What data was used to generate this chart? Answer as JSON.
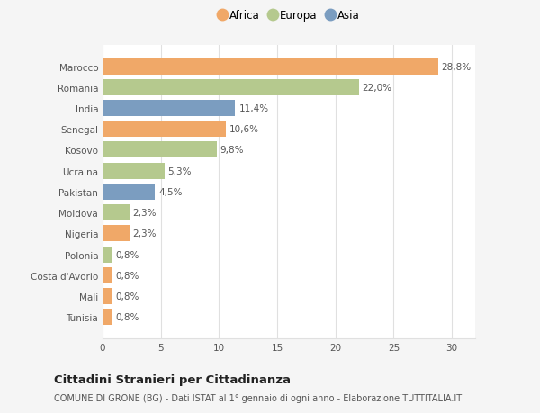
{
  "countries": [
    "Marocco",
    "Romania",
    "India",
    "Senegal",
    "Kosovo",
    "Ucraina",
    "Pakistan",
    "Moldova",
    "Nigeria",
    "Polonia",
    "Costa d'Avorio",
    "Mali",
    "Tunisia"
  ],
  "values": [
    28.8,
    22.0,
    11.4,
    10.6,
    9.8,
    5.3,
    4.5,
    2.3,
    2.3,
    0.8,
    0.8,
    0.8,
    0.8
  ],
  "labels": [
    "28,8%",
    "22,0%",
    "11,4%",
    "10,6%",
    "9,8%",
    "5,3%",
    "4,5%",
    "2,3%",
    "2,3%",
    "0,8%",
    "0,8%",
    "0,8%",
    "0,8%"
  ],
  "continent": [
    "Africa",
    "Europa",
    "Asia",
    "Africa",
    "Europa",
    "Europa",
    "Asia",
    "Europa",
    "Africa",
    "Europa",
    "Africa",
    "Africa",
    "Africa"
  ],
  "colors": {
    "Africa": "#F0A868",
    "Europa": "#B5C98E",
    "Asia": "#7B9DC0"
  },
  "legend_order": [
    "Africa",
    "Europa",
    "Asia"
  ],
  "title": "Cittadini Stranieri per Cittadinanza",
  "subtitle": "COMUNE DI GRONE (BG) - Dati ISTAT al 1° gennaio di ogni anno - Elaborazione TUTTITALIA.IT",
  "xlim": [
    0,
    32
  ],
  "xticks": [
    0,
    5,
    10,
    15,
    20,
    25,
    30
  ],
  "bg_color": "#f5f5f5",
  "plot_bg_color": "#ffffff",
  "grid_color": "#e0e0e0",
  "title_fontsize": 9.5,
  "subtitle_fontsize": 7,
  "label_fontsize": 7.5,
  "tick_fontsize": 7.5,
  "legend_fontsize": 8.5
}
